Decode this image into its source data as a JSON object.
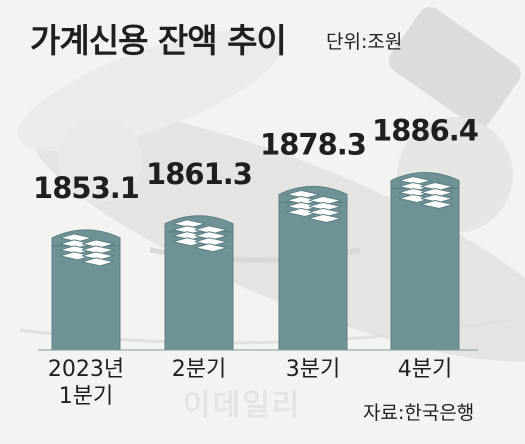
{
  "header": {
    "title": "가계신용 잔액 추이",
    "unit": "단위:조원"
  },
  "footer": {
    "source": "자료:한국은행",
    "watermark": "이데일리"
  },
  "colors": {
    "bar": "#6f9296",
    "bar_edge": "#5b7f84",
    "stack_fill": "#ffffff",
    "stack_line": "#5b7f84",
    "text": "#1f1f1f"
  },
  "chart_data": {
    "type": "bar",
    "categories": [
      [
        "2023년",
        "1분기"
      ],
      [
        "2분기"
      ],
      [
        "3분기"
      ],
      [
        "4분기"
      ]
    ],
    "values": [
      1853.1,
      1861.3,
      1878.3,
      1886.4
    ],
    "value_labels": [
      "1853.1",
      "1861.3",
      "1878.3",
      "1886.4"
    ],
    "unit": "조원",
    "title": "가계신용 잔액 추이",
    "xlabel": "",
    "ylabel": "",
    "ylim": [
      1780,
      1900
    ],
    "grid": false,
    "legend": "none"
  }
}
